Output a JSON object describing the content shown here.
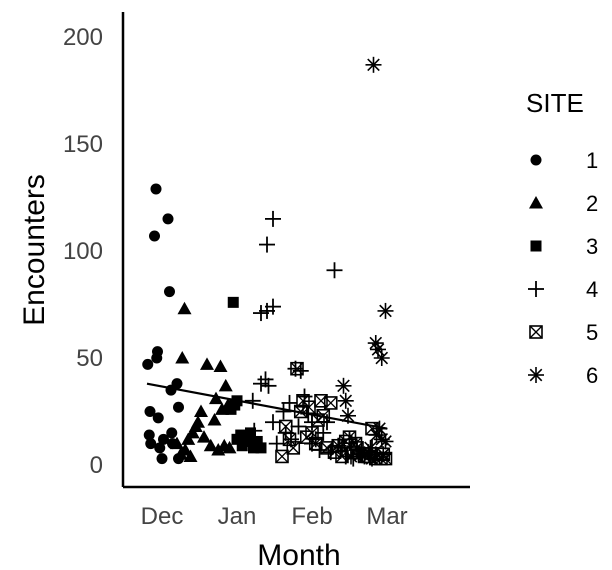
{
  "chart_data": {
    "type": "scatter",
    "title": "",
    "xlabel": "Month",
    "ylabel": "Encounters",
    "x_categories": [
      "Dec",
      "Jan",
      "Feb",
      "Mar"
    ],
    "x_range": [
      -0.45,
      3.95
    ],
    "ylim": [
      0,
      212
    ],
    "yticks": [
      0,
      50,
      100,
      150,
      200
    ],
    "grid": false,
    "legend": {
      "title": "SITE",
      "placement": "right"
    },
    "colors": {
      "points": "#000000",
      "axes": "#000000",
      "ticks": "#444444"
    },
    "series": [
      {
        "name": "1",
        "marker": "circle",
        "points": [
          [
            -0.19,
            47
          ],
          [
            -0.16,
            25
          ],
          [
            -0.17,
            14
          ],
          [
            -0.15,
            10
          ],
          [
            -0.1,
            107
          ],
          [
            -0.08,
            129
          ],
          [
            -0.06,
            53
          ],
          [
            -0.07,
            50
          ],
          [
            -0.05,
            22
          ],
          [
            -0.03,
            8
          ],
          [
            0.0,
            3
          ],
          [
            0.02,
            12
          ],
          [
            0.08,
            115
          ],
          [
            0.1,
            81
          ],
          [
            0.12,
            35
          ],
          [
            0.13,
            15
          ],
          [
            0.14,
            10
          ],
          [
            0.2,
            38
          ],
          [
            0.22,
            27
          ],
          [
            0.22,
            3
          ]
        ]
      },
      {
        "name": "2",
        "marker": "triangle",
        "points": [
          [
            0.2,
            10
          ],
          [
            0.25,
            5
          ],
          [
            0.3,
            73
          ],
          [
            0.31,
            7
          ],
          [
            0.35,
            12
          ],
          [
            0.38,
            4
          ],
          [
            0.41,
            15
          ],
          [
            0.45,
            18
          ],
          [
            0.48,
            20
          ],
          [
            0.52,
            25
          ],
          [
            0.56,
            13
          ],
          [
            0.6,
            47
          ],
          [
            0.65,
            9
          ],
          [
            0.7,
            21
          ],
          [
            0.72,
            31
          ],
          [
            0.75,
            7
          ],
          [
            0.78,
            46
          ],
          [
            0.8,
            26
          ],
          [
            0.83,
            9
          ],
          [
            0.85,
            37
          ],
          [
            0.88,
            28
          ],
          [
            0.9,
            8
          ],
          [
            0.27,
            50
          ]
        ]
      },
      {
        "name": "3",
        "marker": "square",
        "points": [
          [
            0.95,
            76
          ],
          [
            0.97,
            28
          ],
          [
            1.0,
            30
          ],
          [
            1.05,
            14
          ],
          [
            1.1,
            11
          ],
          [
            1.14,
            12
          ],
          [
            1.18,
            15
          ],
          [
            1.22,
            8
          ],
          [
            1.27,
            11
          ],
          [
            1.32,
            8
          ],
          [
            1.0,
            12
          ],
          [
            1.07,
            9
          ],
          [
            0.92,
            26
          ]
        ]
      },
      {
        "name": "4",
        "marker": "plus",
        "points": [
          [
            1.4,
            103
          ],
          [
            1.48,
            115
          ],
          [
            1.32,
            71
          ],
          [
            1.4,
            72
          ],
          [
            1.48,
            74
          ],
          [
            1.38,
            40
          ],
          [
            1.42,
            37
          ],
          [
            1.32,
            38
          ],
          [
            1.21,
            30
          ],
          [
            1.23,
            16
          ],
          [
            1.48,
            20
          ],
          [
            1.53,
            10
          ],
          [
            1.62,
            25
          ],
          [
            1.7,
            29
          ],
          [
            1.78,
            45
          ],
          [
            1.85,
            44
          ],
          [
            1.95,
            24
          ],
          [
            2.0,
            10
          ],
          [
            2.05,
            12
          ],
          [
            2.1,
            7
          ],
          [
            2.15,
            15
          ],
          [
            2.2,
            20
          ],
          [
            2.25,
            6
          ],
          [
            2.3,
            91
          ],
          [
            2.35,
            9
          ],
          [
            2.4,
            8
          ],
          [
            2.45,
            4
          ],
          [
            2.5,
            12
          ],
          [
            2.55,
            3
          ],
          [
            2.6,
            7
          ],
          [
            2.65,
            5
          ],
          [
            2.7,
            4
          ],
          [
            2.75,
            6
          ],
          [
            2.8,
            8
          ],
          [
            2.85,
            5
          ],
          [
            1.65,
            15
          ],
          [
            1.72,
            12
          ],
          [
            1.82,
            18
          ],
          [
            1.9,
            32
          ],
          [
            2.0,
            20
          ]
        ]
      },
      {
        "name": "5",
        "marker": "squarex",
        "points": [
          [
            1.6,
            4
          ],
          [
            1.65,
            18
          ],
          [
            1.7,
            12
          ],
          [
            1.75,
            8
          ],
          [
            1.8,
            45
          ],
          [
            1.85,
            25
          ],
          [
            1.88,
            30
          ],
          [
            1.93,
            13
          ],
          [
            1.96,
            27
          ],
          [
            2.0,
            15
          ],
          [
            2.05,
            10
          ],
          [
            2.08,
            21
          ],
          [
            2.12,
            30
          ],
          [
            2.15,
            23
          ],
          [
            2.2,
            8
          ],
          [
            2.25,
            29
          ],
          [
            2.3,
            6
          ],
          [
            2.35,
            9
          ],
          [
            2.4,
            4
          ],
          [
            2.45,
            11
          ],
          [
            2.5,
            13
          ],
          [
            2.55,
            6
          ],
          [
            2.6,
            8
          ],
          [
            2.7,
            4
          ],
          [
            2.75,
            4
          ],
          [
            2.8,
            17
          ],
          [
            2.85,
            3
          ],
          [
            2.92,
            3
          ],
          [
            2.95,
            5
          ],
          [
            2.98,
            3
          ],
          [
            2.58,
            10
          ]
        ]
      },
      {
        "name": "6",
        "marker": "asterisk",
        "points": [
          [
            2.42,
            37
          ],
          [
            2.45,
            30
          ],
          [
            2.48,
            23
          ],
          [
            2.52,
            4
          ],
          [
            2.6,
            8
          ],
          [
            2.65,
            5
          ],
          [
            2.7,
            5
          ],
          [
            2.78,
            8
          ],
          [
            2.82,
            187
          ],
          [
            2.85,
            57
          ],
          [
            2.88,
            54
          ],
          [
            2.93,
            50
          ],
          [
            2.98,
            72
          ],
          [
            2.9,
            17
          ],
          [
            2.93,
            12
          ],
          [
            2.95,
            5
          ],
          [
            2.98,
            11
          ],
          [
            2.86,
            14
          ],
          [
            2.8,
            3
          ]
        ]
      }
    ],
    "trend_line": {
      "x": [
        -0.2,
        3.0
      ],
      "y": [
        38,
        17
      ]
    }
  }
}
